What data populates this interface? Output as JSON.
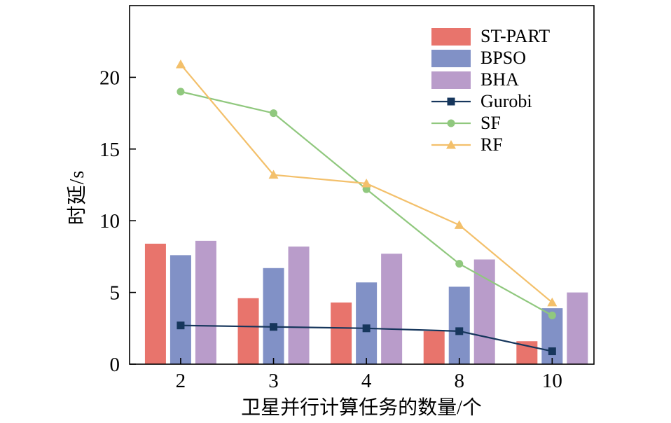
{
  "chart_data": {
    "type": "bar+line",
    "title": "",
    "xlabel": "卫星并行计算任务的数量/个",
    "ylabel": "时延/s",
    "categories": [
      "2",
      "3",
      "4",
      "8",
      "10"
    ],
    "ylim": [
      0,
      25
    ],
    "yticks": [
      0,
      5,
      10,
      15,
      20
    ],
    "grid": false,
    "legend_position": "upper-right",
    "axis_color": "#000000",
    "background": "#ffffff",
    "bar_series": [
      {
        "name": "ST-PART",
        "color": "#e8746c",
        "values": [
          8.4,
          4.6,
          4.3,
          2.3,
          1.6
        ]
      },
      {
        "name": "BPSO",
        "color": "#8191c6",
        "values": [
          7.6,
          6.7,
          5.7,
          5.4,
          3.9
        ]
      },
      {
        "name": "BHA",
        "color": "#b99cca",
        "values": [
          8.6,
          8.2,
          7.7,
          7.3,
          5.0
        ]
      }
    ],
    "line_series": [
      {
        "name": "Gurobi",
        "color": "#16365c",
        "marker": "square",
        "values": [
          2.7,
          2.6,
          2.5,
          2.3,
          0.9
        ]
      },
      {
        "name": "SF",
        "color": "#90c87e",
        "marker": "circle",
        "values": [
          19.0,
          17.5,
          12.2,
          7.0,
          3.4
        ]
      },
      {
        "name": "RF",
        "color": "#f3c06b",
        "marker": "triangle",
        "values": [
          20.9,
          13.2,
          12.6,
          9.7,
          4.3
        ]
      }
    ]
  }
}
